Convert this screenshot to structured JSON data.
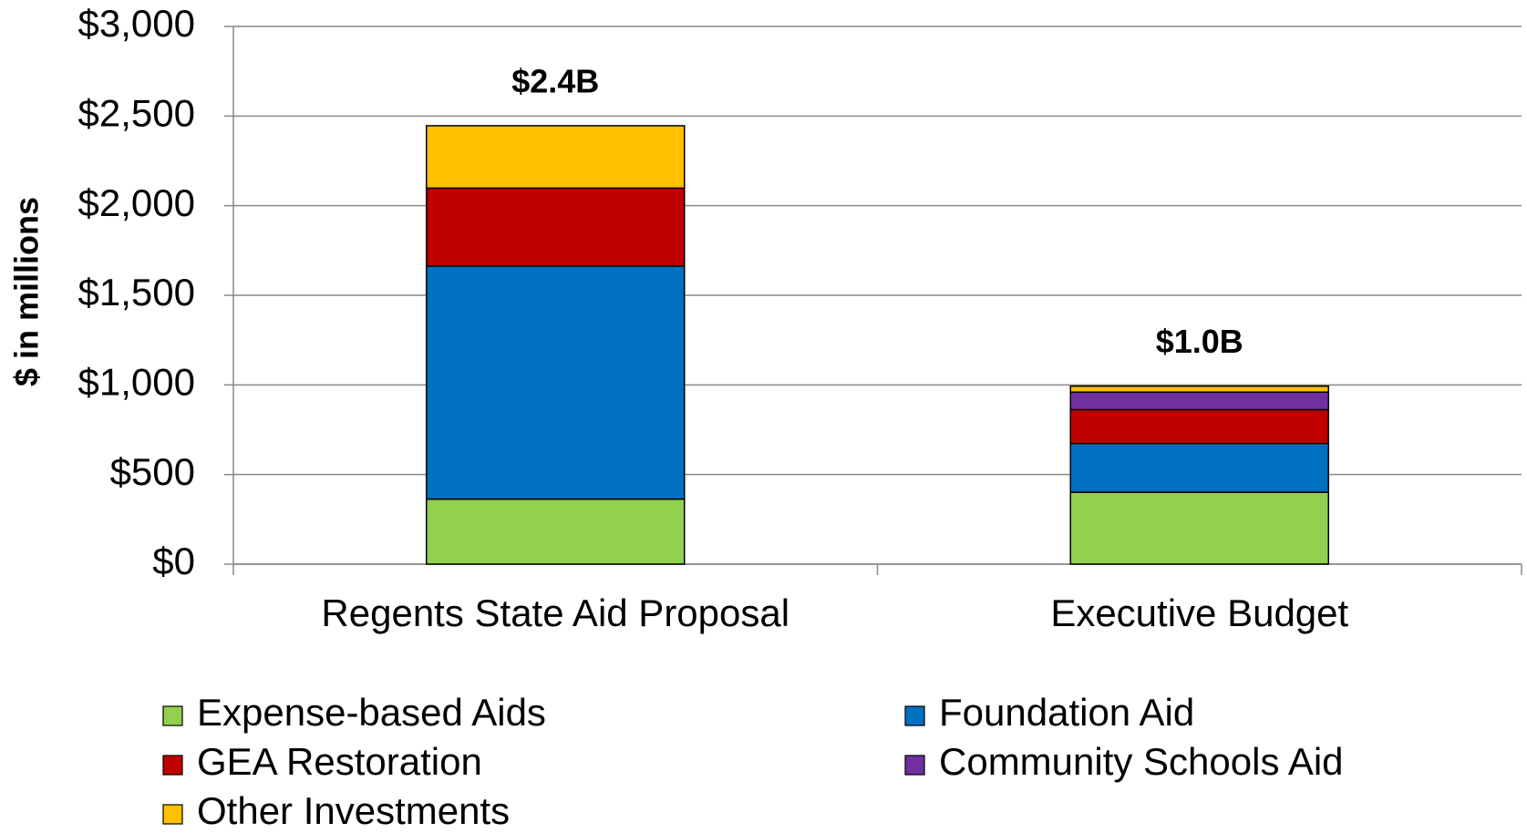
{
  "chart_data": {
    "type": "stacked-bar",
    "y_label": "$ in millions",
    "categories": [
      "Regents State Aid Proposal",
      "Executive Budget"
    ],
    "annotations": [
      "$2.4B",
      "$1.0B"
    ],
    "series": [
      {
        "name": "Expense-based Aids",
        "color": "#92d050",
        "values": [
          363,
          401
        ]
      },
      {
        "name": "Foundation Aid",
        "color": "#0070c0",
        "values": [
          1300,
          272
        ]
      },
      {
        "name": "GEA Restoration",
        "color": "#c00000",
        "values": [
          435,
          189
        ]
      },
      {
        "name": "Community Schools Aid",
        "color": "#7030a0",
        "values": [
          0,
          98
        ]
      },
      {
        "name": "Other Investments",
        "color": "#ffc000",
        "values": [
          348,
          33
        ]
      }
    ],
    "ylim": [
      0,
      3000
    ],
    "yticks": [
      {
        "value": 0,
        "label": "$0"
      },
      {
        "value": 500,
        "label": "$500"
      },
      {
        "value": 1000,
        "label": "$1,000"
      },
      {
        "value": 1500,
        "label": "$1,500"
      },
      {
        "value": 2000,
        "label": "$2,000"
      },
      {
        "value": 2500,
        "label": "$2,500"
      },
      {
        "value": 3000,
        "label": "$3,000"
      }
    ],
    "grid": true,
    "legend": "bottom"
  }
}
